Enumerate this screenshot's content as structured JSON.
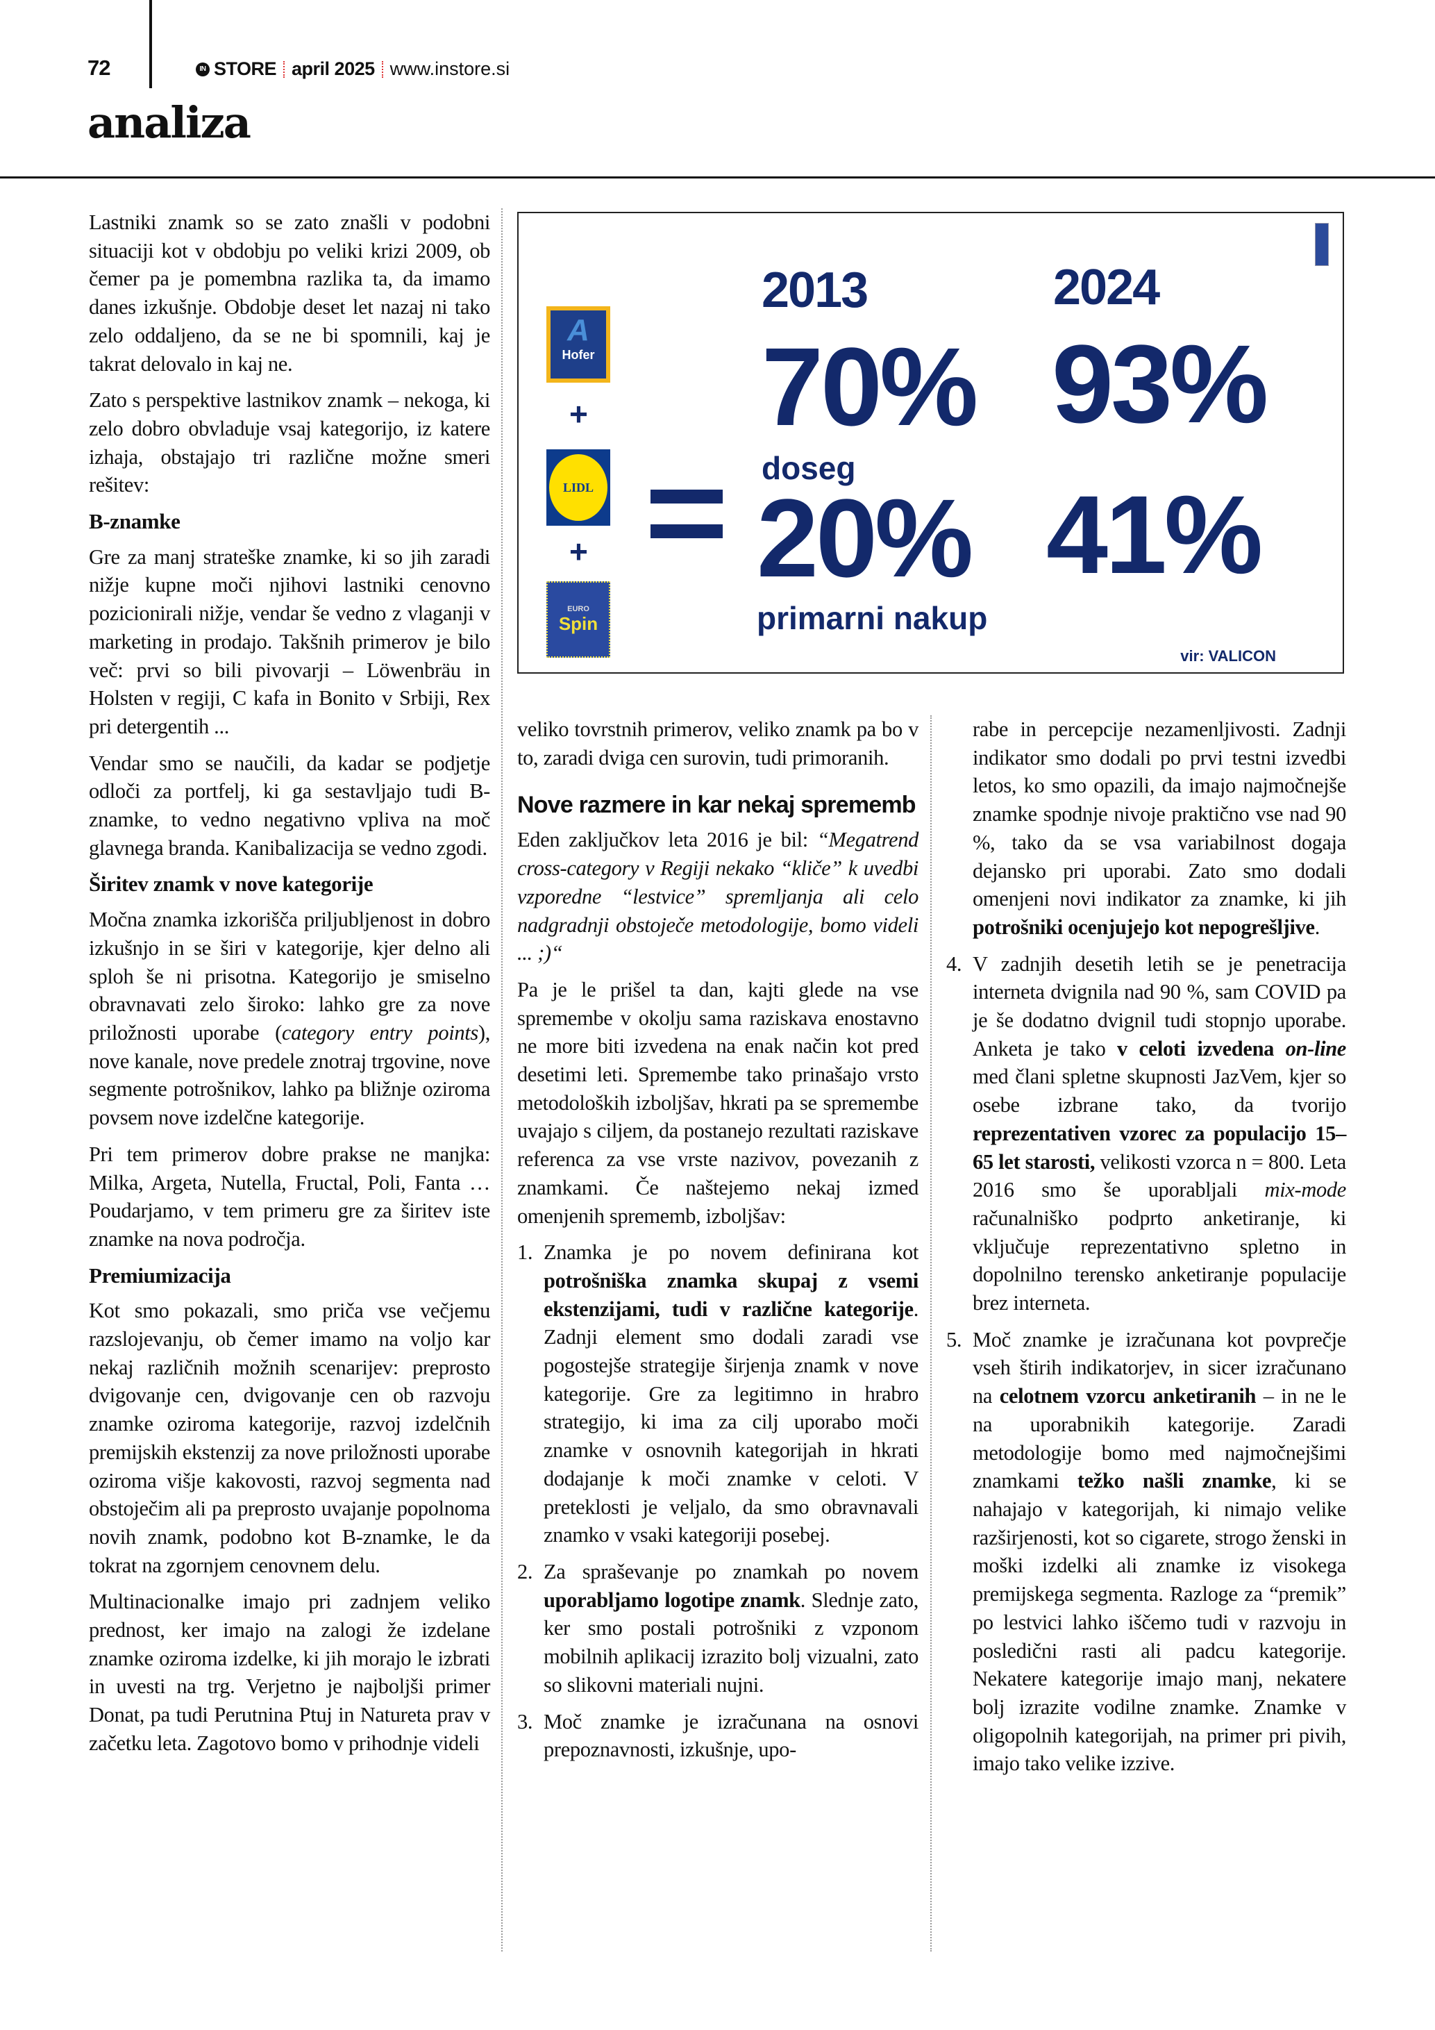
{
  "header": {
    "page_number": "72",
    "brand": "STORE",
    "brand_mark": "IN",
    "date": "april 2025",
    "website": "www.instore.si",
    "section": "analiza"
  },
  "infographic": {
    "logos": [
      "Hofer",
      "LIDL",
      "Spin"
    ],
    "logo_extra": "EURO",
    "plus": "+",
    "equals": "=",
    "years": [
      "2013",
      "2024"
    ],
    "doseg": {
      "label": "doseg",
      "values": [
        "70%",
        "93%"
      ]
    },
    "primarni_nakup": {
      "label": "primarni nakup",
      "values": [
        "20%",
        "41%"
      ]
    },
    "source": "vir: VALICON",
    "colors": {
      "text": "#13296b",
      "hofer_border": "#f3b51b",
      "lidl_yellow": "#ffe000"
    }
  },
  "col1": [
    {
      "type": "p",
      "runs": [
        {
          "t": "Lastniki znamk so se zato znašli v podobni situaciji kot v obdobju po veliki krizi 2009, ob čemer pa je pomembna razlika ta, da imamo danes izkušnje. Obdobje deset let nazaj ni tako zelo oddaljeno, da se ne bi spomnili, kaj je takrat delovalo in kaj ne."
        }
      ]
    },
    {
      "type": "p",
      "runs": [
        {
          "t": "Zato s perspektive lastnikov znamk – nekoga, ki zelo dobro obvladuje vsaj kategorijo, iz katere izhaja, obstajajo tri različne možne smeri rešitev:"
        }
      ]
    },
    {
      "type": "h",
      "runs": [
        {
          "t": "B-znamke"
        }
      ]
    },
    {
      "type": "p",
      "runs": [
        {
          "t": "Gre za manj strateške znamke, ki so jih zaradi nižje kupne moči njihovi lastniki cenovno pozicionirali nižje, vendar še vedno z vlaganji v marketing in prodajo. Takšnih primerov je bilo več: prvi so bili pivovarji – Löwenbräu in Holsten v regiji, C kafa in Bonito v Srbiji, Rex pri detergentih ..."
        }
      ]
    },
    {
      "type": "p",
      "runs": [
        {
          "t": "Vendar smo se naučili, da kadar se podjetje odloči za portfelj, ki ga sestavljajo tudi B-znamke, to vedno negativno vpliva na moč glavnega branda. Kanibalizacija se vedno zgodi."
        }
      ]
    },
    {
      "type": "h",
      "runs": [
        {
          "t": "Širitev znamk v nove kategorije"
        }
      ]
    },
    {
      "type": "p",
      "runs": [
        {
          "t": "Močna znamka izkorišča priljubljenost in dobro izkušnjo in se širi v kategorije, kjer delno ali sploh še ni prisotna. Kategorijo je smiselno obravnavati zelo široko: lahko gre za nove priložnosti uporabe ("
        },
        {
          "t": "category entry points",
          "s": "i"
        },
        {
          "t": "), nove kanale, nove predele znotraj trgovine, nove segmente potrošnikov, lahko pa bližnje oziroma povsem nove izdelčne kategorije."
        }
      ]
    },
    {
      "type": "p",
      "runs": [
        {
          "t": "Pri tem primerov dobre prakse ne manjka: Milka, Argeta, Nutella, Fructal, Poli, Fanta … Poudarjamo, v tem primeru gre za širitev iste znamke na nova področja."
        }
      ]
    },
    {
      "type": "h",
      "runs": [
        {
          "t": "Premiumizacija"
        }
      ]
    },
    {
      "type": "p",
      "runs": [
        {
          "t": "Kot smo pokazali, smo priča vse večjemu razslojevanju, ob čemer imamo na voljo kar nekaj različnih možnih scenarijev: preprosto dvigovanje cen, dvigovanje cen ob razvoju znamke oziroma kategorije, razvoj izdelčnih premijskih ekstenzij za nove priložnosti uporabe oziroma višje kakovosti, razvoj segmenta nad obstoječim ali pa preprosto uvajanje popolnoma novih znamk, podobno kot B-znamke, le da tokrat na zgornjem cenovnem delu."
        }
      ]
    },
    {
      "type": "p",
      "runs": [
        {
          "t": "Multinacionalke imajo pri zadnjem veliko prednost, ker imajo na zalogi že izdelane znamke oziroma izdelke, ki jih morajo le izbrati in uvesti na trg. Verjetno je najboljši primer Donat, pa tudi Perutnina Ptuj in Natureta prav v začetku leta. Zagotovo bomo v prihodnje videli"
        }
      ]
    }
  ],
  "col2": [
    {
      "type": "p",
      "runs": [
        {
          "t": "veliko tovrstnih primerov, veliko znamk pa bo v to, zaradi dviga cen surovin, tudi primoranih."
        }
      ]
    },
    {
      "type": "h2",
      "runs": [
        {
          "t": "Nove razmere in kar nekaj sprememb"
        }
      ]
    },
    {
      "type": "p",
      "runs": [
        {
          "t": "Eden zaključkov leta 2016 je bil: "
        },
        {
          "t": "“Megatrend cross-category v Regiji nekako “kliče” k uvedbi vzporedne “lestvice” spremljanja ali celo nadgradnji obstoječe metodologije, bomo videli ... ;)“",
          "s": "i"
        }
      ]
    },
    {
      "type": "p",
      "runs": [
        {
          "t": "Pa je le prišel ta dan, kajti glede na vse spremembe v okolju sama raziskava enostavno ne more biti izvedena na enak način kot pred desetimi leti. Spremembe tako prinašajo vrsto metodoloških izboljšav, hkrati pa se spremembe uvajajo s ciljem, da postanejo rezultati raziskave referenca za vse vrste nazivov, povezanih z znamkami. Če naštejemo nekaj izmed omenjenih sprememb, izboljšav:"
        }
      ]
    },
    {
      "type": "li",
      "num": "1.",
      "runs": [
        {
          "t": "Znamka je po novem definirana kot "
        },
        {
          "t": "potrošniška znamka skupaj z vsemi ekstenzijami, tudi v različne kategorije",
          "s": "b"
        },
        {
          "t": ". Zadnji element smo dodali zaradi vse pogostejše strategije širjenja znamk v nove kategorije. Gre za legitimno in hrabro strategijo, ki ima za cilj uporabo moči znamke v osnovnih kategorijah in hkrati dodajanje k moči znamke v celoti. V preteklosti je veljalo, da smo obravnavali znamko v vsaki kategoriji posebej."
        }
      ]
    },
    {
      "type": "li",
      "num": "2.",
      "runs": [
        {
          "t": "Za spraševanje po znamkah po novem "
        },
        {
          "t": "uporabljamo logotipe znamk",
          "s": "b"
        },
        {
          "t": ". Sledn­je zato, ker smo postali potrošniki z vzponom mobilnih aplikacij izrazito bolj vizualni, zato so slikovni materiali nujni."
        }
      ]
    },
    {
      "type": "li",
      "num": "3.",
      "runs": [
        {
          "t": "Moč znamke je izračunana na osnovi prepoznavnosti, izkušnje, upo-"
        }
      ]
    }
  ],
  "col3": [
    {
      "type": "cont",
      "runs": [
        {
          "t": "rabe in percepcije nezamenljivosti. Zadnji indikator smo dodali po prvi testni izvedbi letos, ko smo opazili, da imajo najmočnejše znamke spodnje nivoje praktično vse nad 90 %, tako da se vsa variabilnost dogaja dejansko pri uporabi. Zato smo dodali omenjeni novi indikator za znamke, ki jih "
        },
        {
          "t": "potrošniki ocenjujejo kot nepogrešljive",
          "s": "b"
        },
        {
          "t": "."
        }
      ]
    },
    {
      "type": "li",
      "num": "4.",
      "runs": [
        {
          "t": "V zadnjih desetih letih se je penetracija interneta dvignila nad 90 %, sam COVID pa je še dodatno dvignil tudi stopnjo uporabe. Anketa je tako "
        },
        {
          "t": "v celoti izvedena ",
          "s": "b"
        },
        {
          "t": "on-line",
          "s": "bi"
        },
        {
          "t": " med člani spletne skupnosti JazVem, kjer so osebe izbrane tako, da tvorijo "
        },
        {
          "t": "reprezentativen vzorec za populacijo 15–65 let starosti,",
          "s": "b"
        },
        {
          "t": " velikosti vzorca n = 800. Leta 2016 smo še uporabljali "
        },
        {
          "t": "mix-mode",
          "s": "i"
        },
        {
          "t": " računalniško podprto anketiranje, ki vključuje reprezentativno spletno in dopolnilno terensko anketiranje populacije brez interneta."
        }
      ]
    },
    {
      "type": "li",
      "num": "5.",
      "runs": [
        {
          "t": "Moč znamke je izračunana kot povprečje vseh štirih indikatorjev, in sicer izračunano na "
        },
        {
          "t": "celotnem vzorcu anketiranih",
          "s": "b"
        },
        {
          "t": " – in ne le na uporabnikih kategorije. Zaradi metodologije bomo med najmočnejšimi znamkami "
        },
        {
          "t": "težko našli znamke",
          "s": "b"
        },
        {
          "t": ", ki se nahajajo v kategorijah, ki nimajo velike razširjenosti, kot so cigarete, strogo ženski in moški izdelki ali znamke iz visokega premijskega segmenta. Razloge za “premik” po lestvici lahko iščemo tudi v razvoju in posledični rasti ali padcu kategorije. Nekatere kategorije imajo manj, nekatere bolj izrazite vodilne znamke. Znamke v oligopolnih kategorijah, na primer pri pivih, imajo tako velike izzive."
        }
      ]
    }
  ]
}
